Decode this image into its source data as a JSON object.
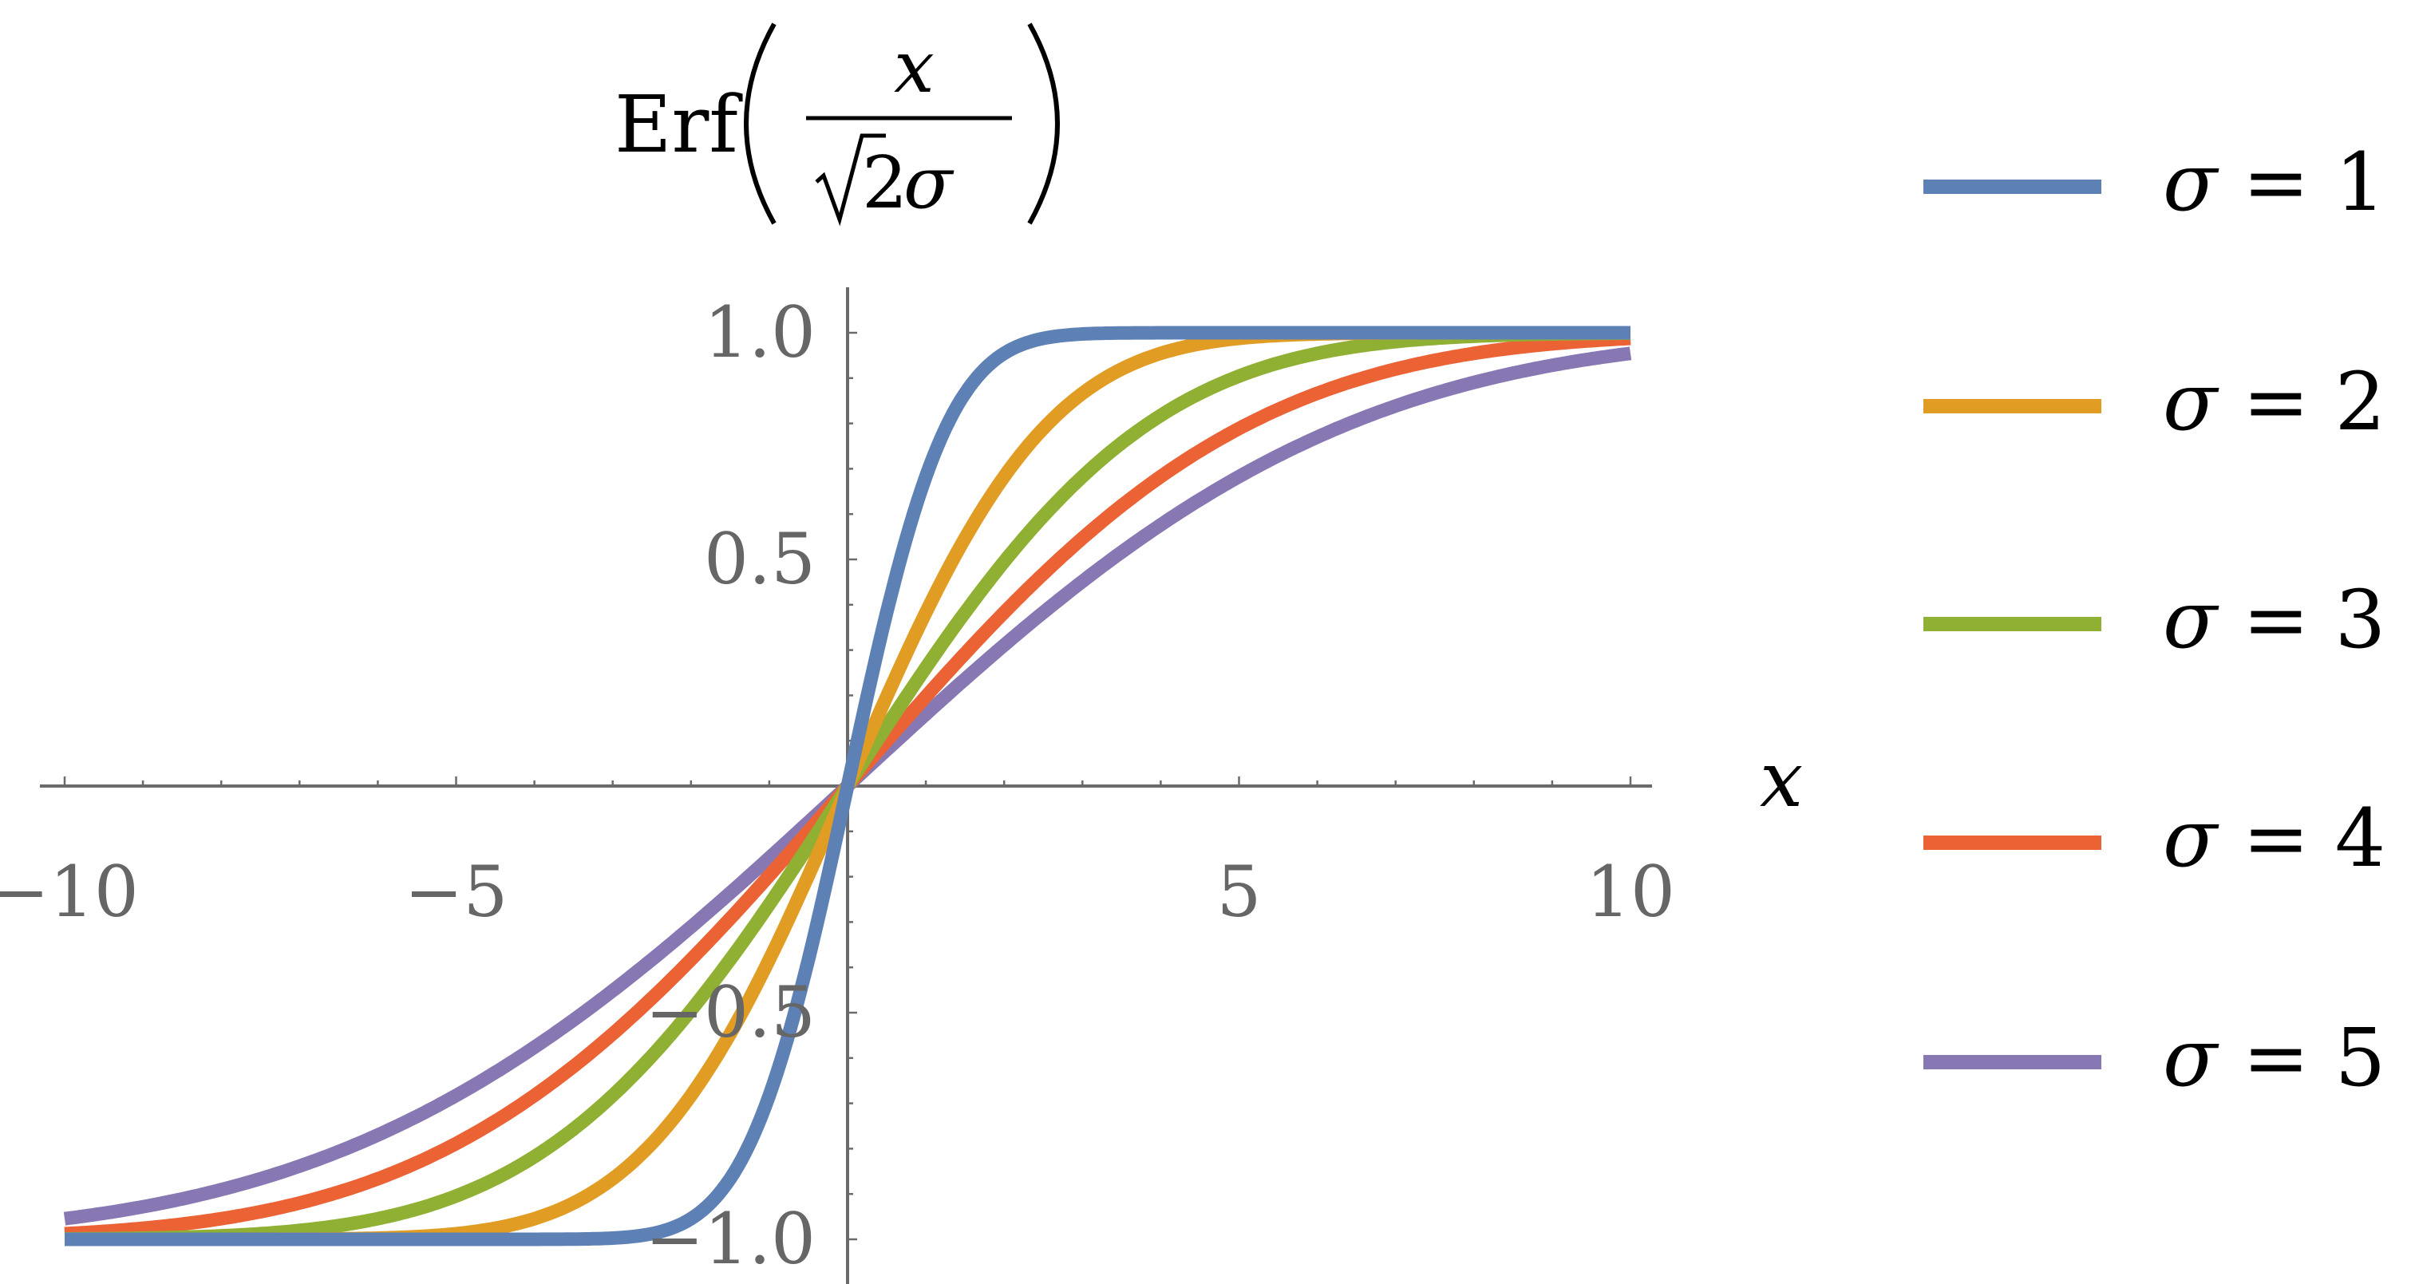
{
  "chart_data": {
    "type": "line",
    "title": "Erf(x / (√2σ))",
    "title_parts": {
      "func": "Erf",
      "numerator": "x",
      "denominator_root": "2",
      "denominator_var": "σ",
      "left_paren": "(",
      "right_paren": ")"
    },
    "xlabel": "x",
    "ylabel": "Erf(x/(√2σ))",
    "xlim": [
      -10,
      10
    ],
    "ylim": [
      -1.05,
      1.05
    ],
    "x_ticks": [
      -10,
      -5,
      5,
      10
    ],
    "x_tick_labels": [
      "−10",
      "−5",
      "5",
      "10"
    ],
    "y_ticks": [
      1.0,
      0.5,
      -0.5,
      -1.0
    ],
    "y_tick_labels": [
      "1.0",
      "0.5",
      "−0.5",
      "−1.0"
    ],
    "x_minor_step": 1,
    "y_minor_step": 0.1,
    "grid": false,
    "legend_position": "right",
    "function": "erf(x / (sqrt(2) * sigma))",
    "series": [
      {
        "name": "σ = 1",
        "sigma": 1,
        "color": "#5E81B5",
        "x": [
          -10,
          -5,
          -3,
          -2,
          -1,
          0,
          1,
          2,
          3,
          5,
          10
        ],
        "values": [
          -1.0,
          -1.0,
          -0.997,
          -0.954,
          -0.683,
          0,
          0.683,
          0.954,
          0.997,
          1.0,
          1.0
        ]
      },
      {
        "name": "σ = 2",
        "sigma": 2,
        "color": "#E19C24",
        "x": [
          -10,
          -5,
          -3,
          -2,
          -1,
          0,
          1,
          2,
          3,
          5,
          10
        ],
        "values": [
          -1.0,
          -0.988,
          -0.866,
          -0.683,
          -0.383,
          0,
          0.383,
          0.683,
          0.866,
          0.988,
          1.0
        ]
      },
      {
        "name": "σ = 3",
        "sigma": 3,
        "color": "#8FB032",
        "x": [
          -10,
          -5,
          -3,
          -2,
          -1,
          0,
          1,
          2,
          3,
          5,
          10
        ],
        "values": [
          -0.999,
          -0.904,
          -0.683,
          -0.495,
          -0.261,
          0,
          0.261,
          0.495,
          0.683,
          0.904,
          0.999
        ]
      },
      {
        "name": "σ = 4",
        "sigma": 4,
        "color": "#EB6235",
        "x": [
          -10,
          -5,
          -3,
          -2,
          -1,
          0,
          1,
          2,
          3,
          5,
          10
        ],
        "values": [
          -0.988,
          -0.789,
          -0.547,
          -0.383,
          -0.197,
          0,
          0.197,
          0.383,
          0.547,
          0.789,
          0.988
        ]
      },
      {
        "name": "σ = 5",
        "sigma": 5,
        "color": "#8778B3",
        "x": [
          -10,
          -5,
          -3,
          -2,
          -1,
          0,
          1,
          2,
          3,
          5,
          10
        ],
        "values": [
          -0.954,
          -0.683,
          -0.451,
          -0.311,
          -0.159,
          0,
          0.159,
          0.311,
          0.451,
          0.683,
          0.954
        ]
      }
    ]
  },
  "legend": {
    "items": [
      {
        "symbol": "σ",
        "eq": " = ",
        "value": "1",
        "color": "#5E81B5"
      },
      {
        "symbol": "σ",
        "eq": " = ",
        "value": "2",
        "color": "#E19C24"
      },
      {
        "symbol": "σ",
        "eq": " = ",
        "value": "3",
        "color": "#8FB032"
      },
      {
        "symbol": "σ",
        "eq": " = ",
        "value": "4",
        "color": "#EB6235"
      },
      {
        "symbol": "σ",
        "eq": " = ",
        "value": "5",
        "color": "#8778B3"
      }
    ]
  },
  "axis_color": "#6B6B6B",
  "tick_label_color": "#666666"
}
